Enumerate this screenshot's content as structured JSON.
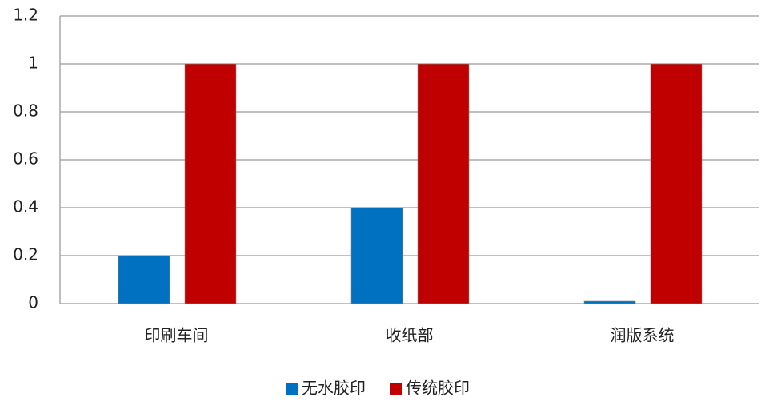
{
  "chart_data": {
    "type": "bar",
    "categories": [
      "印刷车间",
      "收纸部",
      "润版系统"
    ],
    "series": [
      {
        "name": "无水胶印",
        "color": "#0070c0",
        "values": [
          0.2,
          0.4,
          0.01
        ]
      },
      {
        "name": "传统胶印",
        "color": "#c00000",
        "values": [
          1,
          1,
          1
        ]
      }
    ],
    "ylim": [
      0,
      1.2
    ],
    "yticks": [
      0,
      0.2,
      0.4,
      0.6,
      0.8,
      1,
      1.2
    ],
    "grid": true,
    "legend": "bottom"
  }
}
